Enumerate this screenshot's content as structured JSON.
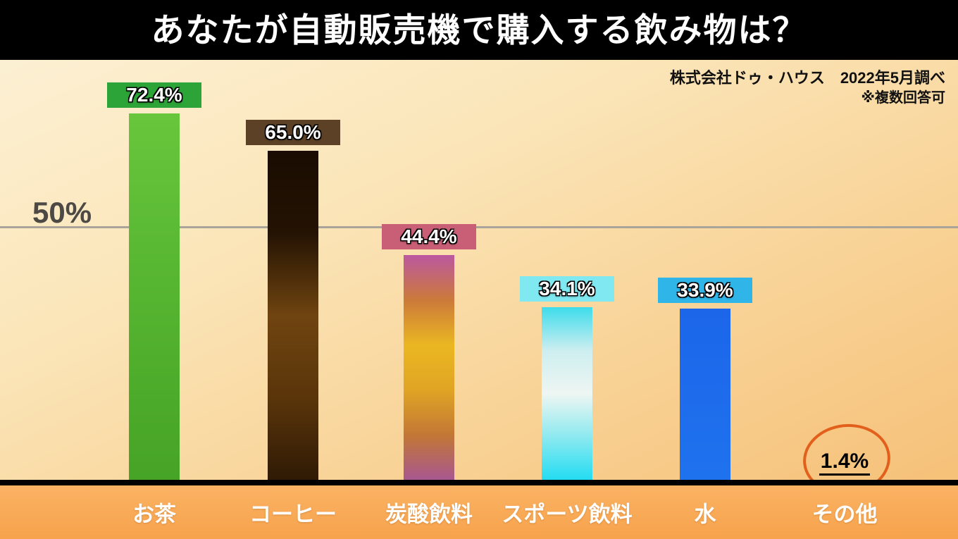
{
  "header": {
    "title": "あなたが自動販売機で購入する飲み物は？"
  },
  "attribution": {
    "line1": "株式会社ドゥ・ハウス　2022年5月調べ",
    "line2": "※複数回答可"
  },
  "chart_data": {
    "type": "bar",
    "title": "あなたが自動販売機で購入する飲み物は？",
    "xlabel": "",
    "ylabel": "",
    "ylim": [
      0,
      80
    ],
    "grid": "single horizontal line at 50%",
    "gridline": {
      "value": 50,
      "label": "50%"
    },
    "categories": [
      "お茶",
      "コーヒー",
      "炭酸飲料",
      "スポーツ飲料",
      "水",
      "その他"
    ],
    "values": [
      72.4,
      65.0,
      44.4,
      34.1,
      33.9,
      1.4
    ],
    "bars": [
      {
        "category": "お茶",
        "value": 72.4,
        "label": "72.4%",
        "badge_color": "#2ca437",
        "bar_gradient": [
          "#68c63c",
          "#55b430",
          "#46a326"
        ]
      },
      {
        "category": "コーヒー",
        "value": 65.0,
        "label": "65.0%",
        "badge_color": "#5c4126",
        "bar_gradient": [
          "#1a0c02",
          "#241303",
          "#6f4410",
          "#5a350a",
          "#2f1a05"
        ]
      },
      {
        "category": "炭酸飲料",
        "value": 44.4,
        "label": "44.4%",
        "badge_color": "#c95f76",
        "bar_gradient": [
          "#bc58a0",
          "#cc7a3a",
          "#eab722",
          "#e0a424",
          "#c27736",
          "#a85791"
        ]
      },
      {
        "category": "スポーツ飲料",
        "value": 34.1,
        "label": "34.1%",
        "badge_color": "#7fe8f0",
        "bar_gradient": [
          "#3edceb",
          "#cdeef0",
          "#eef6f2",
          "#8ce9f0",
          "#22dcf2"
        ]
      },
      {
        "category": "水",
        "value": 33.9,
        "label": "33.9%",
        "badge_color": "#30b5e8",
        "bar_gradient": [
          "#1c66ea",
          "#1f72ee"
        ]
      },
      {
        "category": "その他",
        "value": 1.4,
        "label": "1.4%",
        "badge_color": null,
        "bar_gradient": null,
        "annotation": "circled in orange, underlined"
      }
    ]
  }
}
